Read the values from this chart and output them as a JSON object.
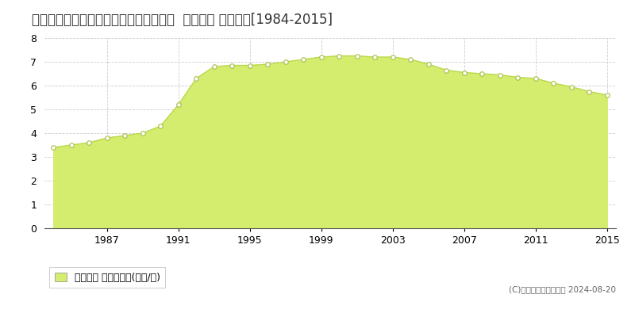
{
  "title": "栃木県栃木市千塚町字春名塚１６７番２  地価公示 地価推移[1984-2015]",
  "years": [
    1984,
    1985,
    1986,
    1987,
    1988,
    1989,
    1990,
    1991,
    1992,
    1993,
    1994,
    1995,
    1996,
    1997,
    1998,
    1999,
    2000,
    2001,
    2002,
    2003,
    2004,
    2005,
    2006,
    2007,
    2008,
    2009,
    2010,
    2011,
    2012,
    2013,
    2014,
    2015
  ],
  "values": [
    3.4,
    3.5,
    3.6,
    3.8,
    3.9,
    4.0,
    4.3,
    5.2,
    6.3,
    6.8,
    6.85,
    6.85,
    6.9,
    7.0,
    7.1,
    7.2,
    7.25,
    7.25,
    7.2,
    7.2,
    7.1,
    6.9,
    6.65,
    6.55,
    6.5,
    6.45,
    6.35,
    6.3,
    6.1,
    5.95,
    5.75,
    5.6
  ],
  "fill_color": "#d4ed6e",
  "line_color": "#b8d94a",
  "marker_facecolor": "#ffffff",
  "marker_edgecolor": "#aabb44",
  "background_color": "#ffffff",
  "plot_bg_color": "#ffffff",
  "grid_color": "#cccccc",
  "yticks": [
    0,
    1,
    2,
    3,
    4,
    5,
    6,
    7,
    8
  ],
  "xticks": [
    1987,
    1991,
    1995,
    1999,
    2003,
    2007,
    2011,
    2015
  ],
  "ylim": [
    0,
    8
  ],
  "xlim": [
    1983.5,
    2015.5
  ],
  "legend_label": "地価公示 平均坪単価(万円/坪)",
  "copyright_text": "(C)土地価格ドットコム 2024-08-20",
  "title_fontsize": 12,
  "tick_fontsize": 9,
  "legend_fontsize": 9
}
